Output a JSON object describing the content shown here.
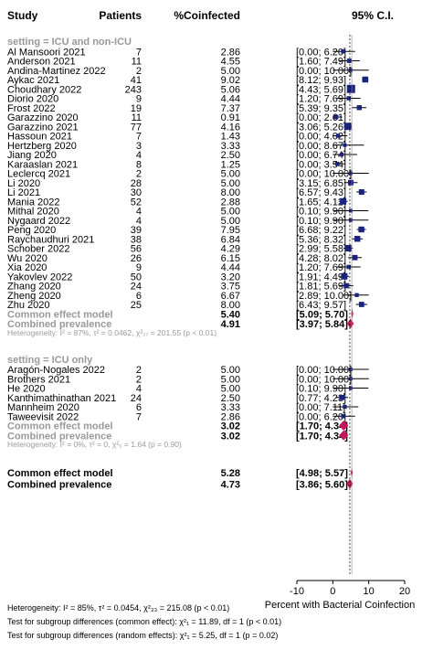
{
  "chart_data": {
    "type": "forest",
    "headers": {
      "study": "Study",
      "patients": "Patients",
      "pct": "%Coinfected",
      "ci": "95% C.I."
    },
    "subgroups": [
      {
        "label": "setting = ICU and non-ICU",
        "studies": [
          {
            "name": "Al Mansoori 2021",
            "n": "7",
            "est": 2.86,
            "lo": 0.0,
            "hi": 6.2,
            "est_text": "2.86",
            "ci_text": "[0.00; 6.20]"
          },
          {
            "name": "Anderson 2021",
            "n": "11",
            "est": 4.55,
            "lo": 1.6,
            "hi": 7.49,
            "est_text": "4.55",
            "ci_text": "[1.60; 7.49]"
          },
          {
            "name": "Andina-Martinez 2022",
            "n": "2",
            "est": 5.0,
            "lo": 0.0,
            "hi": 10.0,
            "est_text": "5.00",
            "ci_text": "[0.00; 10.00]"
          },
          {
            "name": "Aykac 2021",
            "n": "41",
            "est": 9.02,
            "lo": 8.12,
            "hi": 9.93,
            "est_text": "9.02",
            "ci_text": "[8.12; 9.93]"
          },
          {
            "name": "Choudhary 2022",
            "n": "243",
            "est": 5.06,
            "lo": 4.43,
            "hi": 5.69,
            "est_text": "5.06",
            "ci_text": "[4.43; 5.69]"
          },
          {
            "name": "Diorio 2020",
            "n": "9",
            "est": 4.44,
            "lo": 1.2,
            "hi": 7.69,
            "est_text": "4.44",
            "ci_text": "[1.20; 7.69]"
          },
          {
            "name": "Frost 2022",
            "n": "19",
            "est": 7.37,
            "lo": 5.39,
            "hi": 9.35,
            "est_text": "7.37",
            "ci_text": "[5.39; 9.35]"
          },
          {
            "name": "Garazzino 2020",
            "n": "11",
            "est": 0.91,
            "lo": 0.0,
            "hi": 2.61,
            "est_text": "0.91",
            "ci_text": "[0.00; 2.61]"
          },
          {
            "name": "Garazzino 2021",
            "n": "77",
            "est": 4.16,
            "lo": 3.06,
            "hi": 5.26,
            "est_text": "4.16",
            "ci_text": "[3.06; 5.26]"
          },
          {
            "name": "Hassoun 2021",
            "n": "7",
            "est": 1.43,
            "lo": 0.0,
            "hi": 4.02,
            "est_text": "1.43",
            "ci_text": "[0.00; 4.02]"
          },
          {
            "name": "Hertzberg 2020",
            "n": "3",
            "est": 3.33,
            "lo": 0.0,
            "hi": 8.67,
            "est_text": "3.33",
            "ci_text": "[0.00; 8.67]"
          },
          {
            "name": "Jiang 2020",
            "n": "4",
            "est": 2.5,
            "lo": 0.0,
            "hi": 6.74,
            "est_text": "2.50",
            "ci_text": "[0.00; 6.74]"
          },
          {
            "name": "Karaaslan 2021",
            "n": "8",
            "est": 1.25,
            "lo": 0.0,
            "hi": 3.54,
            "est_text": "1.25",
            "ci_text": "[0.00; 3.54]"
          },
          {
            "name": "Leclercq 2021",
            "n": "2",
            "est": 5.0,
            "lo": 0.0,
            "hi": 10.0,
            "est_text": "5.00",
            "ci_text": "[0.00; 10.00]"
          },
          {
            "name": "Li 2020",
            "n": "28",
            "est": 5.0,
            "lo": 3.15,
            "hi": 6.85,
            "est_text": "5.00",
            "ci_text": "[3.15; 6.85]"
          },
          {
            "name": "Li 2021",
            "n": "30",
            "est": 8.0,
            "lo": 6.57,
            "hi": 9.43,
            "est_text": "8.00",
            "ci_text": "[6.57; 9.43]"
          },
          {
            "name": "Mania 2022",
            "n": "52",
            "est": 2.88,
            "lo": 1.65,
            "hi": 4.12,
            "est_text": "2.88",
            "ci_text": "[1.65; 4.12]"
          },
          {
            "name": "Mithal 2020",
            "n": "4",
            "est": 5.0,
            "lo": 0.1,
            "hi": 9.9,
            "est_text": "5.00",
            "ci_text": "[0.10; 9.90]"
          },
          {
            "name": "Nygaard 2022",
            "n": "4",
            "est": 5.0,
            "lo": 0.1,
            "hi": 9.9,
            "est_text": "5.00",
            "ci_text": "[0.10; 9.90]"
          },
          {
            "name": "Peng 2020",
            "n": "39",
            "est": 7.95,
            "lo": 6.68,
            "hi": 9.22,
            "est_text": "7.95",
            "ci_text": "[6.68; 9.22]"
          },
          {
            "name": "Raychaudhuri 2021",
            "n": "38",
            "est": 6.84,
            "lo": 5.36,
            "hi": 8.32,
            "est_text": "6.84",
            "ci_text": "[5.36; 8.32]"
          },
          {
            "name": "Schober 2022",
            "n": "56",
            "est": 4.29,
            "lo": 2.99,
            "hi": 5.58,
            "est_text": "4.29",
            "ci_text": "[2.99; 5.58]"
          },
          {
            "name": "Wu 2020",
            "n": "26",
            "est": 6.15,
            "lo": 4.28,
            "hi": 8.02,
            "est_text": "6.15",
            "ci_text": "[4.28; 8.02]"
          },
          {
            "name": "Xia 2020",
            "n": "9",
            "est": 4.44,
            "lo": 1.2,
            "hi": 7.69,
            "est_text": "4.44",
            "ci_text": "[1.20; 7.69]"
          },
          {
            "name": "Yakovlev 2022",
            "n": "50",
            "est": 3.2,
            "lo": 1.91,
            "hi": 4.49,
            "est_text": "3.20",
            "ci_text": "[1.91; 4.49]"
          },
          {
            "name": "Zhang 2020",
            "n": "24",
            "est": 3.75,
            "lo": 1.81,
            "hi": 5.69,
            "est_text": "3.75",
            "ci_text": "[1.81; 5.69]"
          },
          {
            "name": "Zheng 2020",
            "n": "6",
            "est": 6.67,
            "lo": 2.89,
            "hi": 10.0,
            "est_text": "6.67",
            "ci_text": "[2.89; 10.00]"
          },
          {
            "name": "Zhu 2020",
            "n": "25",
            "est": 8.0,
            "lo": 6.43,
            "hi": 9.57,
            "est_text": "8.00",
            "ci_text": "[6.43; 9.57]"
          }
        ],
        "pooled": [
          {
            "label": "Common effect model",
            "est": 5.4,
            "lo": 5.09,
            "hi": 5.7,
            "est_text": "5.40",
            "ci_text": "[5.09; 5.70]"
          },
          {
            "label": "Combined prevalence",
            "est": 4.91,
            "lo": 3.97,
            "hi": 5.84,
            "est_text": "4.91",
            "ci_text": "[3.97; 5.84]"
          }
        ],
        "heterogeneity": "Heterogeneity: I² = 87%, τ² = 0.0462, χ²₂₇ = 201.55 (p < 0.01)"
      },
      {
        "label": "setting = ICU only",
        "studies": [
          {
            "name": "Aragón-Nogales 2022",
            "n": "2",
            "est": 5.0,
            "lo": 0.0,
            "hi": 10.0,
            "est_text": "5.00",
            "ci_text": "[0.00; 10.00]"
          },
          {
            "name": "Brothers 2021",
            "n": "2",
            "est": 5.0,
            "lo": 0.0,
            "hi": 10.0,
            "est_text": "5.00",
            "ci_text": "[0.00; 10.00]"
          },
          {
            "name": "He 2020",
            "n": "4",
            "est": 5.0,
            "lo": 0.1,
            "hi": 9.9,
            "est_text": "5.00",
            "ci_text": "[0.10; 9.90]"
          },
          {
            "name": "Kanthimathinathan 2021",
            "n": "24",
            "est": 2.5,
            "lo": 0.77,
            "hi": 4.23,
            "est_text": "2.50",
            "ci_text": "[0.77; 4.23]"
          },
          {
            "name": "Mannheim 2020",
            "n": "6",
            "est": 3.33,
            "lo": 0.0,
            "hi": 7.11,
            "est_text": "3.33",
            "ci_text": "[0.00; 7.11]"
          },
          {
            "name": "Taweevisit 2022",
            "n": "7",
            "est": 2.86,
            "lo": 0.0,
            "hi": 6.2,
            "est_text": "2.86",
            "ci_text": "[0.00; 6.20]"
          }
        ],
        "pooled": [
          {
            "label": "Common effect model",
            "est": 3.02,
            "lo": 1.7,
            "hi": 4.34,
            "est_text": "3.02",
            "ci_text": "[1.70; 4.34]"
          },
          {
            "label": "Combined prevalence",
            "est": 3.02,
            "lo": 1.7,
            "hi": 4.34,
            "est_text": "3.02",
            "ci_text": "[1.70; 4.34]"
          }
        ],
        "heterogeneity": "Heterogeneity: I² = 0%, τ² = 0, χ²₅ = 1.64 (p = 0.90)"
      }
    ],
    "overall": [
      {
        "label": "Common effect model",
        "est": 5.28,
        "lo": 4.98,
        "hi": 5.57,
        "est_text": "5.28",
        "ci_text": "[4.98; 5.57]"
      },
      {
        "label": "Combined prevalence",
        "est": 4.73,
        "lo": 3.86,
        "hi": 5.6,
        "est_text": "4.73",
        "ci_text": "[3.86; 5.60]"
      }
    ],
    "footer": [
      "Heterogeneity: I² = 85%, τ² = 0.0454, χ²₃₃ = 215.08 (p < 0.01)",
      "Test for subgroup differences (common effect): χ²₁ = 11.89, df = 1 (p < 0.01)",
      "Test for subgroup differences (random effects): χ²₁ = 5.25, df = 1 (p = 0.02)"
    ],
    "xaxis": {
      "label": "Percent with Bacterial Coinfection",
      "ticks": [
        -10,
        0,
        10,
        20
      ],
      "range": [
        -10,
        20
      ]
    },
    "colors": {
      "square": "#1a237e",
      "diamond": "#c2185b",
      "grey_text": "#999999"
    }
  }
}
